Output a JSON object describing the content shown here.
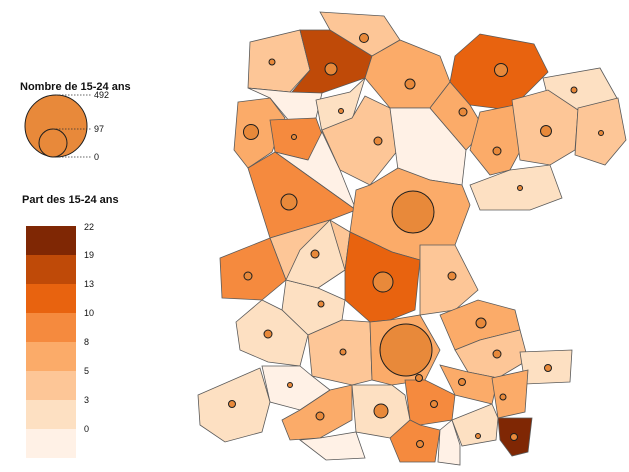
{
  "legend": {
    "size_title": "Nombre de 15-24 ans",
    "size_values": [
      "492",
      "97",
      "0"
    ],
    "color_title": "Part des 15-24 ans",
    "class_breaks": [
      "22",
      "19",
      "13",
      "10",
      "8",
      "5",
      "3",
      "0"
    ],
    "class_colors": [
      "#7f2704",
      "#bf4a08",
      "#e8630f",
      "#f58a3e",
      "#fbab69",
      "#fdc697",
      "#fde0c2",
      "#fff1e6"
    ]
  },
  "symbol_color": "#e8893a"
}
